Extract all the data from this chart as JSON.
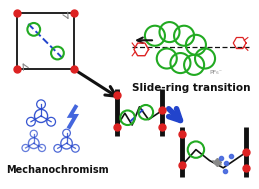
{
  "title": "Slide-ring transition",
  "subtitle": "Mechanochromism",
  "bg_color": "#ffffff",
  "red": "#dd2222",
  "green": "#22aa22",
  "blue": "#2244cc",
  "blue_light": "#4466dd",
  "dark": "#111111",
  "gray": "#888888",
  "fig_w": 2.59,
  "fig_h": 1.89,
  "dpi": 100
}
